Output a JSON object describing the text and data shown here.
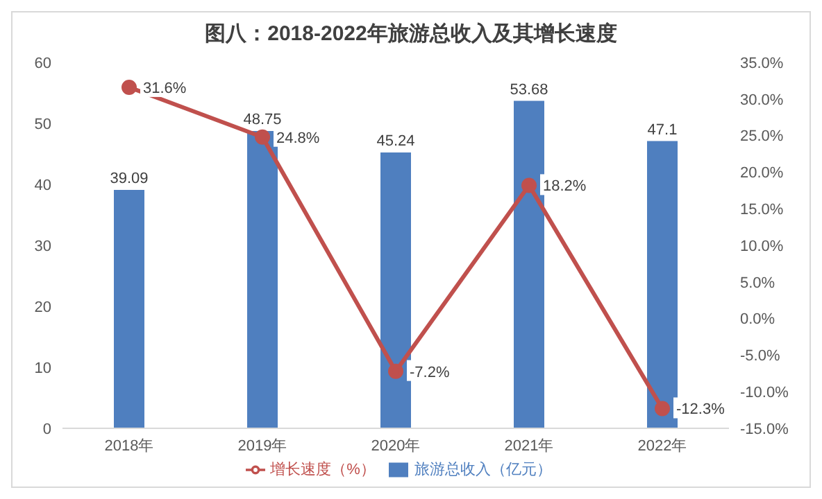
{
  "chart_data": {
    "type": "bar",
    "title": "图八：2018-2022年旅游总收入及其增长速度",
    "categories": [
      "2018年",
      "2019年",
      "2020年",
      "2021年",
      "2022年"
    ],
    "series": [
      {
        "name": "旅游总收入（亿元）",
        "color": "#4f7fbf",
        "values": [
          39.09,
          48.75,
          45.24,
          53.68,
          47.1
        ],
        "value_labels": [
          "39.09",
          "48.75",
          "45.24",
          "53.68",
          "47.1"
        ]
      },
      {
        "name": "增长速度（%）",
        "type": "line",
        "axis": "y2",
        "color": "#c0504d",
        "values": [
          31.6,
          24.8,
          -7.2,
          18.2,
          -12.3
        ],
        "value_labels": [
          "31.6%",
          "24.8%",
          "-7.2%",
          "18.2%",
          "-12.3%"
        ]
      }
    ],
    "ylim": [
      0,
      60
    ],
    "yticks": [
      0,
      10,
      20,
      30,
      40,
      50,
      60
    ],
    "y2lim": [
      -15,
      35
    ],
    "y2ticks": [
      {
        "value": -15,
        "label": "-15.0%"
      },
      {
        "value": -10,
        "label": "-10.0%"
      },
      {
        "value": -5,
        "label": "-5.0%"
      },
      {
        "value": 0,
        "label": "0.0%"
      },
      {
        "value": 5,
        "label": "5.0%"
      },
      {
        "value": 10,
        "label": "10.0%"
      },
      {
        "value": 15,
        "label": "15.0%"
      },
      {
        "value": 20,
        "label": "20.0%"
      },
      {
        "value": 25,
        "label": "25.0%"
      },
      {
        "value": 30,
        "label": "30.0%"
      },
      {
        "value": 35,
        "label": "35.0%"
      }
    ],
    "legend": "bottom",
    "marker": "circle",
    "grid": false
  }
}
